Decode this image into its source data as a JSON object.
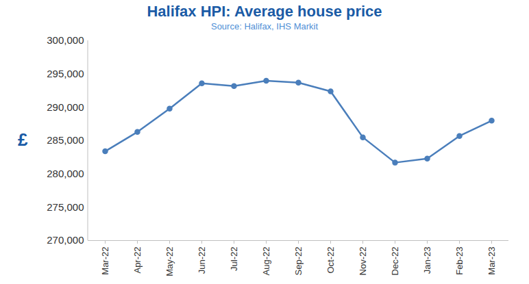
{
  "chart_data": {
    "type": "line",
    "title": "Halifax HPI: Average house price",
    "subtitle": "Source: Halifax, IHS Markit",
    "y_label": "£",
    "categories": [
      "Mar-22",
      "Apr-22",
      "May-22",
      "Jun-22",
      "Jul-22",
      "Aug-22",
      "Sep-22",
      "Oct-22",
      "Nov-22",
      "Dec-22",
      "Jan-23",
      "Feb-23",
      "Mar-23"
    ],
    "values": [
      283400,
      286300,
      289800,
      293600,
      293200,
      294000,
      293700,
      292400,
      285500,
      281700,
      282300,
      285700,
      288000
    ],
    "color": "#4a7ebb",
    "marker": "circle",
    "ylim": [
      270000,
      300000
    ],
    "yticks": [
      {
        "value": 270000,
        "label": "270,000"
      },
      {
        "value": 275000,
        "label": "275,000"
      },
      {
        "value": 280000,
        "label": "280,000"
      },
      {
        "value": 285000,
        "label": "285,000"
      },
      {
        "value": 290000,
        "label": "290,000"
      },
      {
        "value": 295000,
        "label": "295,000"
      },
      {
        "value": 300000,
        "label": "300,000"
      }
    ],
    "grid": false
  }
}
